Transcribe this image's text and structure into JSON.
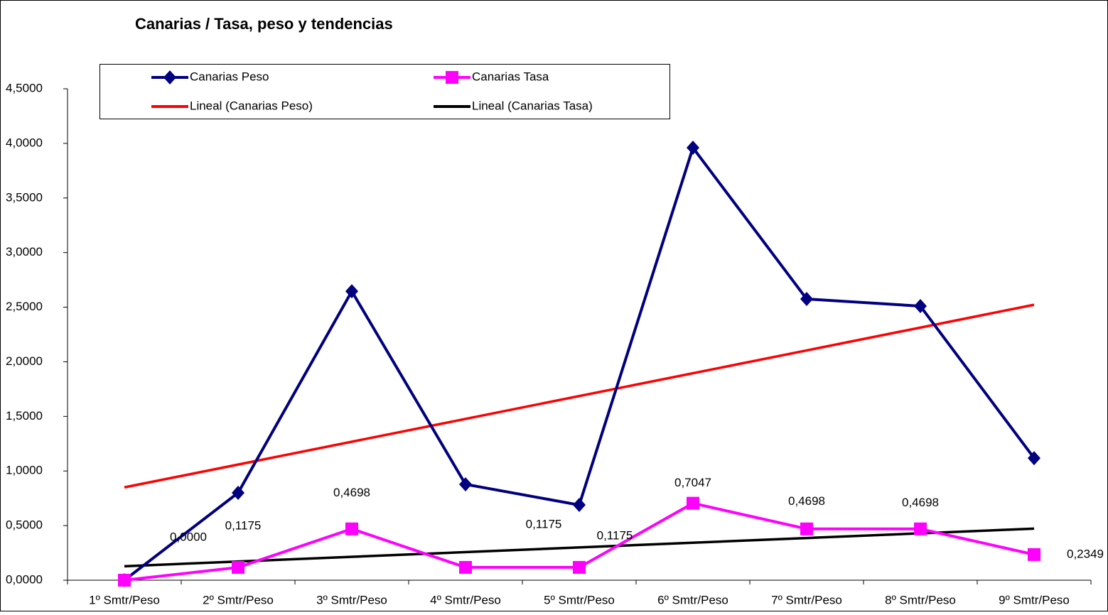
{
  "chart_data": {
    "type": "line",
    "title": "Canarias  / Tasa, peso y tendencias",
    "categories": [
      "1º Smtr/Peso",
      "2º Smtr/Peso",
      "3º Smtr/Peso",
      "4º Smtr/Peso",
      "5º Smtr/Peso",
      "6º Smtr/Peso",
      "7º Smtr/Peso",
      "8º Smtr/Peso",
      "9º Smtr/Peso"
    ],
    "series": [
      {
        "name": "Canarias Peso",
        "color": "#000080",
        "marker": "diamond",
        "values": [
          0,
          0.8,
          2.646,
          0.878,
          0.689,
          3.96,
          2.575,
          2.51,
          1.118
        ]
      },
      {
        "name": "Canarias Tasa",
        "color": "#ff00ff",
        "marker": "square",
        "values": [
          0,
          0.1175,
          0.4698,
          0.1175,
          0.1175,
          0.7047,
          0.4698,
          0.4698,
          0.2349
        ],
        "value_labels": [
          "0,0000",
          "0,1175",
          "0,4698",
          "0,1175",
          "0,1175",
          "0,7047",
          "0,4698",
          "0,4698",
          "0,2349"
        ]
      }
    ],
    "trendlines": [
      {
        "name": "Lineal (Canarias Peso)",
        "color": "#ff0000"
      },
      {
        "name": "Lineal (Canarias Tasa)",
        "color": "#000000"
      }
    ],
    "ylim": [
      0,
      4.5
    ],
    "yticks": [
      {
        "value": 0,
        "label": "0,0000"
      },
      {
        "value": 0.5,
        "label": "0,5000"
      },
      {
        "value": 1,
        "label": "1,0000"
      },
      {
        "value": 1.5,
        "label": "1,5000"
      },
      {
        "value": 2,
        "label": "2,0000"
      },
      {
        "value": 2.5,
        "label": "2,5000"
      },
      {
        "value": 3,
        "label": "3,0000"
      },
      {
        "value": 3.5,
        "label": "3,5000"
      },
      {
        "value": 4,
        "label": "4,0000"
      },
      {
        "value": 4.5,
        "label": "4,5000"
      }
    ]
  }
}
